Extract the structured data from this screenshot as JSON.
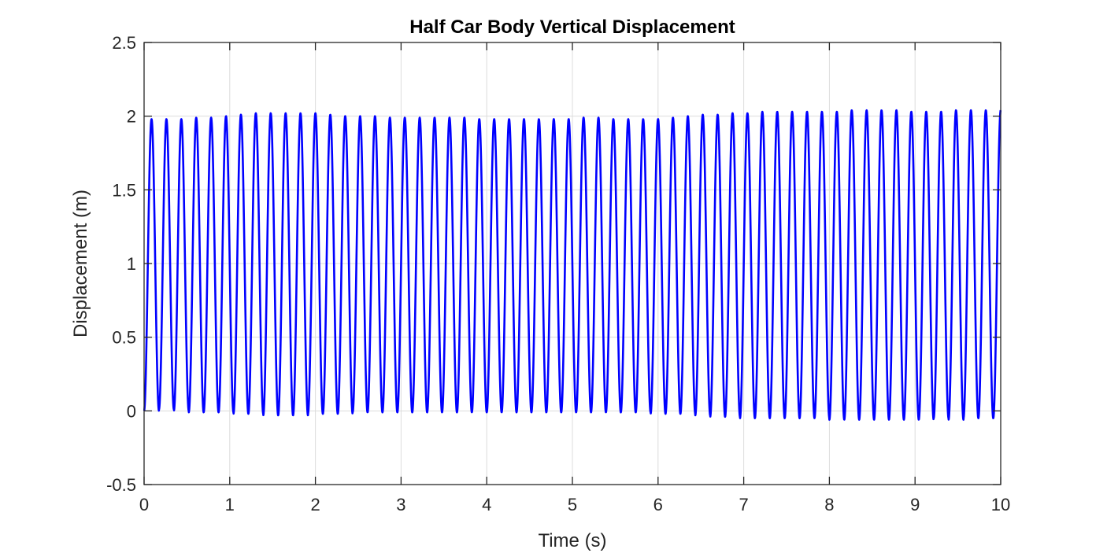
{
  "chart_data": {
    "type": "line",
    "title": "Half Car Body Vertical Displacement",
    "xlabel": "Time (s)",
    "ylabel": "Displacement (m)",
    "xlim": [
      0,
      10
    ],
    "ylim": [
      -0.5,
      2.5
    ],
    "xticks": [
      0,
      1,
      2,
      3,
      4,
      5,
      6,
      7,
      8,
      9,
      10
    ],
    "yticks": [
      -0.5,
      0,
      0.5,
      1,
      1.5,
      2,
      2.5
    ],
    "xtick_labels": [
      "0",
      "1",
      "2",
      "3",
      "4",
      "5",
      "6",
      "7",
      "8",
      "9",
      "10"
    ],
    "ytick_labels": [
      "-0.5",
      "0",
      "0.5",
      "1",
      "1.5",
      "2",
      "2.5"
    ],
    "grid": true,
    "legend": "none",
    "series": [
      {
        "color": "#0000ff",
        "oscillation_frequency_hz": 5.75,
        "peak_times": [
          0.09,
          0.26,
          0.44,
          0.61,
          0.78,
          0.96,
          1.13,
          1.31,
          1.48,
          1.66,
          1.83,
          2.0,
          2.18,
          2.35,
          2.53,
          2.7,
          2.87,
          3.05,
          3.22,
          3.4,
          3.57,
          3.74,
          3.92,
          4.09,
          4.27,
          4.44,
          4.62,
          4.79,
          4.96,
          5.14,
          5.31,
          5.49,
          5.66,
          5.83,
          6.01,
          6.18,
          6.36,
          6.53,
          6.7,
          6.88,
          7.05,
          7.23,
          7.4,
          7.58,
          7.75,
          7.92,
          8.1,
          8.27,
          8.45,
          8.62,
          8.79,
          8.97,
          9.14,
          9.32,
          9.49,
          9.66,
          9.84
        ],
        "peak_values": [
          1.98,
          1.98,
          1.98,
          1.99,
          1.99,
          2.0,
          2.01,
          2.02,
          2.02,
          2.02,
          2.02,
          2.02,
          2.01,
          2.0,
          2.0,
          2.0,
          1.99,
          1.99,
          1.99,
          1.99,
          1.99,
          1.99,
          1.98,
          1.98,
          1.98,
          1.98,
          1.98,
          1.98,
          1.98,
          1.99,
          1.99,
          1.98,
          1.98,
          1.98,
          1.98,
          1.99,
          2.0,
          2.01,
          2.01,
          2.02,
          2.02,
          2.03,
          2.03,
          2.03,
          2.03,
          2.03,
          2.03,
          2.04,
          2.04,
          2.04,
          2.04,
          2.03,
          2.03,
          2.03,
          2.04,
          2.04,
          2.04
        ],
        "trough_values": [
          0.0,
          0.01,
          0.0,
          -0.01,
          -0.01,
          -0.01,
          -0.02,
          -0.02,
          -0.03,
          -0.03,
          -0.03,
          -0.02,
          -0.02,
          -0.02,
          -0.01,
          -0.01,
          -0.01,
          -0.01,
          -0.01,
          -0.01,
          -0.01,
          -0.01,
          -0.01,
          -0.01,
          -0.01,
          -0.01,
          -0.01,
          -0.01,
          -0.01,
          -0.01,
          -0.01,
          -0.01,
          -0.01,
          -0.01,
          -0.02,
          -0.02,
          -0.02,
          -0.03,
          -0.04,
          -0.04,
          -0.05,
          -0.05,
          -0.05,
          -0.05,
          -0.05,
          -0.05,
          -0.06,
          -0.06,
          -0.06,
          -0.06,
          -0.06,
          -0.06,
          -0.06,
          -0.05,
          -0.06,
          -0.05,
          -0.05
        ],
        "end_value": 2.02
      }
    ]
  }
}
